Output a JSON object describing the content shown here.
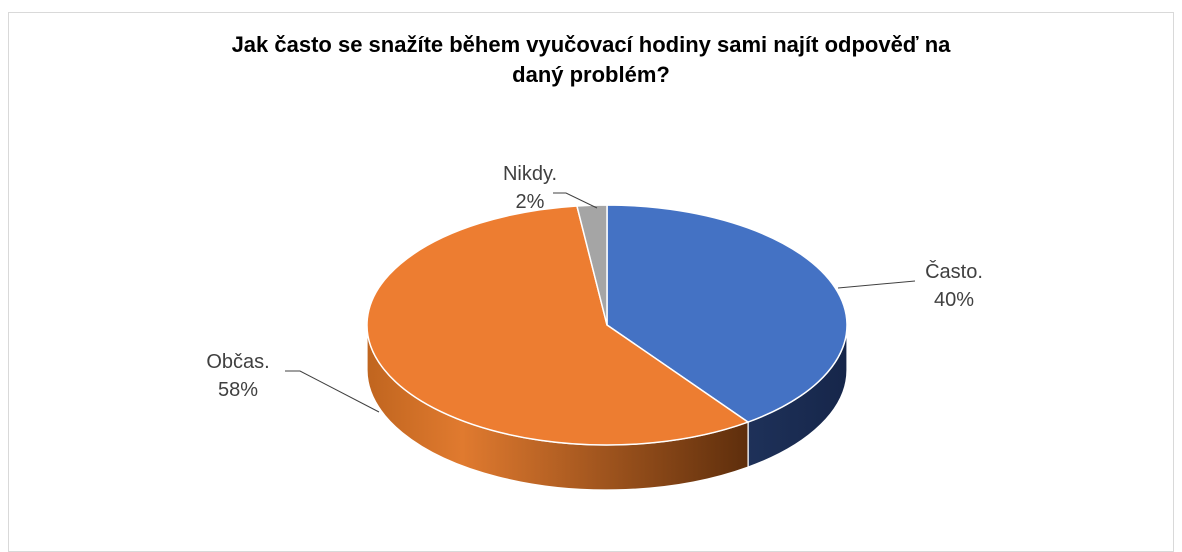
{
  "chart_data": {
    "type": "pie",
    "title_lines": [
      "Jak často se snažíte během vyučovací hodiny sami najít odpověď na",
      "daný problém?"
    ],
    "slices": [
      {
        "label": "Často.",
        "percent_label": "40%",
        "value": 40,
        "color": "#4472C4"
      },
      {
        "label": "Občas.",
        "percent_label": "58%",
        "value": 58,
        "color": "#ED7D31"
      },
      {
        "label": "Nikdy.",
        "percent_label": "2%",
        "value": 2,
        "color": "#A5A5A5"
      }
    ]
  }
}
